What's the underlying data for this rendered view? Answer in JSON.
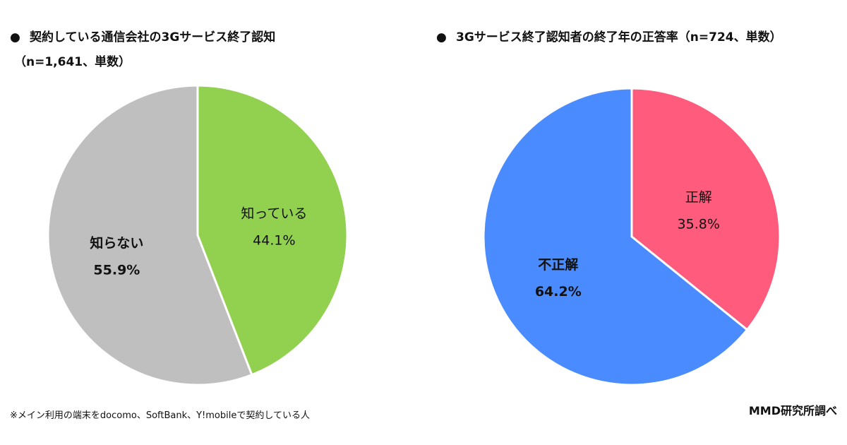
{
  "chart_data": [
    {
      "type": "pie",
      "title": "契約している通信会社の3Gサービス終了認知",
      "subtitle": "（n=1,641、単数）",
      "slices": [
        {
          "label": "知っている",
          "value": 44.1,
          "value_text": "44.1%",
          "color": "#92d050",
          "label_bold": false
        },
        {
          "label": "知らない",
          "value": 55.9,
          "value_text": "55.9%",
          "color": "#bfbfbf",
          "label_bold": true
        }
      ]
    },
    {
      "type": "pie",
      "title": "3Gサービス終了認知者の終了年の正答率（n=724、単数）",
      "slices": [
        {
          "label": "正解",
          "value": 35.8,
          "value_text": "35.8%",
          "color": "#ff5b7c",
          "label_bold": false
        },
        {
          "label": "不正解",
          "value": 64.2,
          "value_text": "64.2%",
          "color": "#4a8cff",
          "label_bold": true
        }
      ]
    }
  ],
  "bullet": "●",
  "footnote": "※メイン利用の端末をdocomo、SoftBank、Y!mobileで契約している人",
  "credit": "MMD研究所調べ"
}
